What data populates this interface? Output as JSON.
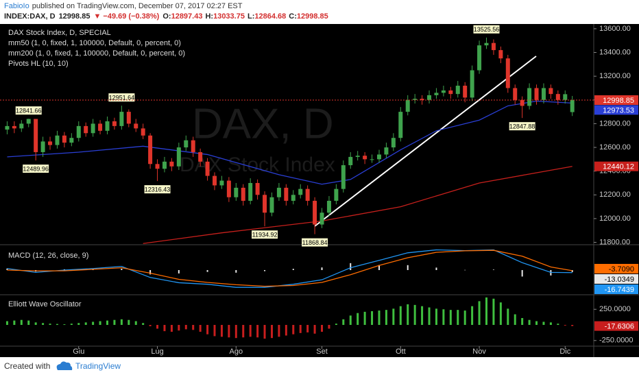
{
  "header": {
    "author": "FabioIo",
    "published": "published on TradingView.com, December 07, 2017 02:27 EST",
    "symbol": "INDEX:DAX, D",
    "last": "12998.85",
    "change": "▼ −49.69 (−0.38%)",
    "open_label": "O:",
    "open": "12897.43",
    "high_label": "H:",
    "high": "13033.75",
    "low_label": "L:",
    "low": "12864.68",
    "close_label": "C:",
    "close": "12998.85"
  },
  "footer": {
    "created_with": "Created with",
    "brand": "TradingView"
  },
  "chart_data": [
    {
      "type": "candlestick",
      "title": "DAX Stock Index, D, SPECIAL",
      "watermark": "DAX, D",
      "watermark_subtitle": "DAX Stock Index",
      "indicator_legend": "Pivots HL (10, 10)",
      "up_color": "#3fa34d",
      "down_color": "#e0352b",
      "open": [
        12750,
        12780,
        12760,
        12800,
        12840,
        12560,
        12650,
        12620,
        12700,
        12640,
        12680,
        12780,
        12720,
        12800,
        12740,
        12820,
        12780,
        12900,
        12800,
        12760,
        12700,
        12460,
        12420,
        12480,
        12440,
        12600,
        12660,
        12560,
        12480,
        12360,
        12280,
        12320,
        12180,
        12260,
        12150,
        12300,
        12200,
        12050,
        12180,
        12260,
        12150,
        12200,
        12250,
        12150,
        11950,
        12050,
        12150,
        12250,
        12450,
        12520,
        12530,
        12500,
        12500,
        12540,
        12600,
        12680,
        12900,
        13000,
        13010,
        13000,
        13040,
        13060,
        13080,
        13050,
        13120,
        13020,
        13250,
        13460,
        13480,
        13420,
        13350,
        13100,
        13000,
        12950,
        13100,
        13000,
        13100,
        13050,
        13000,
        12897.43
      ],
      "high": [
        12820,
        12820,
        12830,
        12841.66,
        12835,
        12690,
        12690,
        12740,
        12730,
        12720,
        12820,
        12810,
        12840,
        12830,
        12860,
        12850,
        12951.64,
        12920,
        12840,
        12800,
        12720,
        12500,
        12520,
        12510,
        12640,
        12700,
        12690,
        12590,
        12510,
        12390,
        12360,
        12350,
        12300,
        12290,
        12340,
        12330,
        12230,
        12220,
        12300,
        12290,
        12240,
        12290,
        12280,
        12180,
        12090,
        12190,
        12290,
        12490,
        12560,
        12570,
        12560,
        12540,
        12580,
        12640,
        12720,
        12940,
        13040,
        13050,
        13040,
        13080,
        13100,
        13120,
        13110,
        13160,
        13150,
        13290,
        13500,
        13525.56,
        13510,
        13450,
        13380,
        13130,
        13030,
        13140,
        13130,
        13140,
        13130,
        13080,
        13080,
        13033.75
      ],
      "low": [
        12710,
        12720,
        12730,
        12770,
        12489.96,
        12520,
        12580,
        12590,
        12600,
        12610,
        12650,
        12690,
        12690,
        12710,
        12710,
        12750,
        12750,
        12770,
        12730,
        12670,
        12420,
        12316.43,
        12390,
        12400,
        12410,
        12570,
        12520,
        12440,
        12320,
        12240,
        12250,
        12140,
        12150,
        12110,
        12120,
        12160,
        11934.92,
        12020,
        12150,
        12110,
        12120,
        12170,
        12110,
        11868.84,
        11920,
        12020,
        12120,
        12220,
        12420,
        12490,
        12460,
        12470,
        12470,
        12510,
        12570,
        12650,
        12870,
        12970,
        12960,
        12970,
        13010,
        13030,
        13010,
        13020,
        12980,
        12990,
        13220,
        13430,
        13380,
        13310,
        13060,
        12960,
        12847.88,
        12920,
        12960,
        12970,
        13010,
        12960,
        12970,
        12864.68
      ],
      "close": [
        12780,
        12760,
        12800,
        12840,
        12560,
        12650,
        12620,
        12700,
        12640,
        12680,
        12780,
        12720,
        12800,
        12740,
        12820,
        12780,
        12900,
        12800,
        12760,
        12700,
        12460,
        12420,
        12480,
        12440,
        12600,
        12660,
        12560,
        12480,
        12360,
        12280,
        12320,
        12180,
        12260,
        12150,
        12300,
        12200,
        12050,
        12180,
        12260,
        12150,
        12200,
        12250,
        12150,
        11950,
        12050,
        12150,
        12250,
        12450,
        12520,
        12530,
        12500,
        12500,
        12540,
        12600,
        12680,
        12900,
        13000,
        13010,
        13000,
        13040,
        13060,
        13080,
        13050,
        13120,
        13020,
        13250,
        13460,
        13480,
        13420,
        13350,
        13100,
        13000,
        12950,
        13100,
        13000,
        13100,
        13050,
        13000,
        13048.54,
        12998.85
      ],
      "overlays": [
        {
          "name": "mm50 (1, 0, fixed, 1, 100000, Default, 0, percent, 0)",
          "color": "#2a3fd6",
          "x": [
            0,
            10,
            19,
            28,
            38,
            44,
            48,
            55,
            60,
            66,
            70,
            74,
            79
          ],
          "values": [
            12520,
            12560,
            12610,
            12540,
            12370,
            12290,
            12330,
            12580,
            12740,
            12830,
            12950,
            12990,
            12973.53
          ]
        },
        {
          "name": "mm200 (1, 0, fixed, 1, 100000, Default, 0, percent, 0)",
          "color": "#c8201c",
          "x": [
            19,
            30,
            44,
            55,
            66,
            79
          ],
          "values": [
            11790,
            11880,
            11980,
            12100,
            12300,
            12440.12
          ]
        }
      ],
      "pivot_highs": {
        "x": [
          3,
          16,
          67
        ],
        "values": [
          12841.66,
          12951.64,
          13525.56
        ]
      },
      "pivot_lows": {
        "x": [
          4,
          21,
          36,
          43,
          72
        ],
        "values": [
          12489.96,
          12316.43,
          11934.92,
          11868.84,
          12847.88
        ]
      },
      "xlim": [
        -1,
        82
      ],
      "ylim": [
        11780,
        13640
      ],
      "xticks": [
        {
          "value": 10,
          "label": "Giu"
        },
        {
          "value": 21,
          "label": "Lug"
        },
        {
          "value": 32,
          "label": "Ago"
        },
        {
          "value": 44,
          "label": "Set"
        },
        {
          "value": 55,
          "label": "Ott"
        },
        {
          "value": 66,
          "label": "Nov"
        },
        {
          "value": 78,
          "label": "Dic"
        }
      ],
      "yticks": [
        {
          "value": 13600,
          "label": "13600.00"
        },
        {
          "value": 13400,
          "label": "13400.00"
        },
        {
          "value": 13200,
          "label": "13200.00"
        },
        {
          "value": 13000,
          "label": "13000.00"
        },
        {
          "value": 12800,
          "label": "12800.00"
        },
        {
          "value": 12600,
          "label": "12600.00"
        },
        {
          "value": 12400,
          "label": "12400.00"
        },
        {
          "value": 12200,
          "label": "12200.00"
        },
        {
          "value": 12000,
          "label": "12000.00"
        },
        {
          "value": 11800,
          "label": "11800.00"
        }
      ]
    },
    {
      "type": "macd",
      "title": "MACD (12, 26, close, 9)",
      "x": [
        0,
        4,
        8,
        12,
        16,
        20,
        24,
        28,
        32,
        36,
        40,
        44,
        48,
        52,
        56,
        60,
        64,
        68,
        72,
        76,
        79
      ],
      "ylim": [
        -160,
        160
      ],
      "series": [
        {
          "color": "#2196f3",
          "values": [
            10,
            -15,
            0,
            10,
            24,
            -48,
            -82,
            -92,
            -112,
            -112,
            -92,
            -63,
            15,
            63,
            112,
            131,
            126,
            131,
            48,
            -15,
            -16.7439
          ]
        },
        {
          "color": "#ff6d00",
          "values": [
            0,
            -5,
            -5,
            5,
            15,
            -20,
            -60,
            -80,
            -95,
            -105,
            -100,
            -80,
            -30,
            30,
            80,
            115,
            125,
            128,
            90,
            20,
            -3.709
          ],
          "last_label": "-3.7090"
        }
      ],
      "histogram": {
        "color": "#e8e8e8",
        "values": [
          10,
          -10,
          5,
          5,
          9,
          -28,
          -22,
          -12,
          -17,
          -7,
          8,
          17,
          45,
          33,
          32,
          16,
          1,
          3,
          -42,
          -35,
          -13.0349
        ]
      }
    },
    {
      "type": "bar",
      "title": "Elliott Wave Oscillator",
      "positive_color": "#3fbf3f",
      "negative_color": "#c81e1e",
      "ylim": [
        -340,
        472
      ],
      "yticks": [
        {
          "value": 250,
          "label": "250.0000"
        },
        {
          "value": -250,
          "label": "-250.0000"
        }
      ],
      "values": [
        60,
        70,
        80,
        70,
        40,
        30,
        20,
        15,
        10,
        20,
        30,
        40,
        50,
        60,
        70,
        80,
        90,
        80,
        60,
        30,
        -20,
        -60,
        -100,
        -110,
        -90,
        -70,
        -80,
        -110,
        -150,
        -180,
        -190,
        -200,
        -210,
        -200,
        -190,
        -200,
        -220,
        -210,
        -190,
        -170,
        -150,
        -130,
        -120,
        -140,
        -110,
        -60,
        20,
        90,
        150,
        190,
        210,
        220,
        230,
        240,
        260,
        300,
        330,
        320,
        300,
        280,
        260,
        250,
        240,
        240,
        230,
        300,
        380,
        440,
        420,
        360,
        260,
        170,
        110,
        80,
        60,
        50,
        40,
        20,
        -10,
        -17.6306
      ]
    }
  ]
}
